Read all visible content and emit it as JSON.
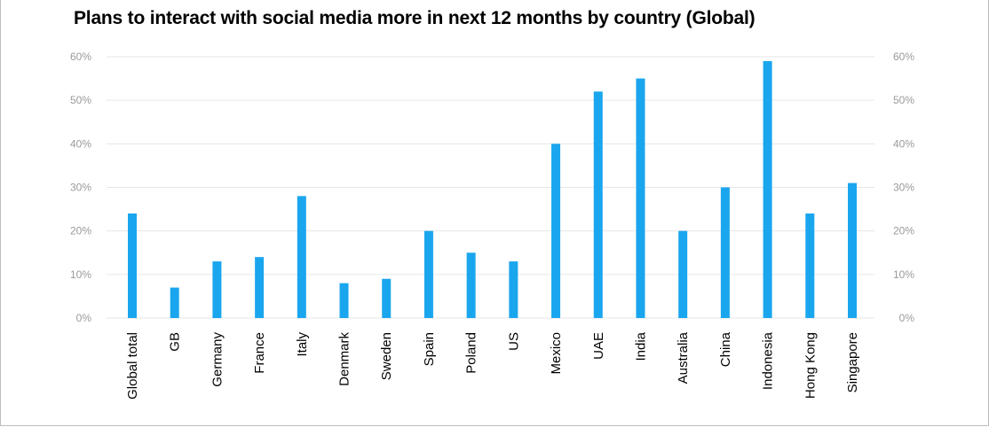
{
  "chart_data": {
    "type": "bar",
    "title": "Plans to interact with social media more in next 12 months by country (Global)",
    "categories": [
      "Global total",
      "GB",
      "Germany",
      "France",
      "Italy",
      "Denmark",
      "Sweden",
      "Spain",
      "Poland",
      "US",
      "Mexico",
      "UAE",
      "India",
      "Australia",
      "China",
      "Indonesia",
      "Hong Kong",
      "Singapore"
    ],
    "values": [
      24,
      7,
      13,
      14,
      28,
      8,
      9,
      20,
      15,
      13,
      40,
      52,
      55,
      20,
      30,
      59,
      24,
      31
    ],
    "ylim": [
      0,
      60
    ],
    "yticks": [
      "0%",
      "10%",
      "20%",
      "30%",
      "40%",
      "50%",
      "60%"
    ],
    "grid": true,
    "bar_color": "#1aa6ee",
    "grid_color": "#e6e6e6"
  }
}
